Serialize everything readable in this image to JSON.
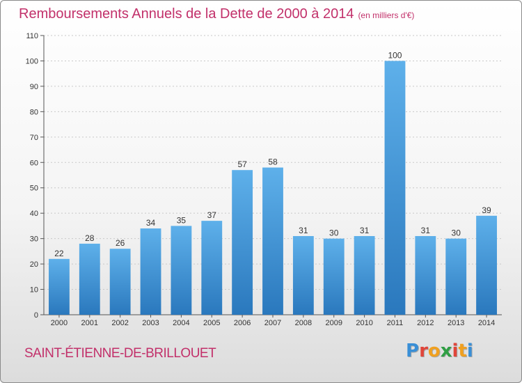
{
  "header": {
    "title": "Remboursements Annuels de la Dette de 2000 à 2014",
    "unit": "(en milliers d'€)"
  },
  "footer": {
    "commune": "SAINT-ÉTIENNE-DE-BRILLOUET",
    "logo_letters": [
      "P",
      "r",
      "o",
      "x",
      "i",
      "t",
      "i"
    ],
    "logo_colors": [
      "#3a8fd6",
      "#e0453a",
      "#f0a020",
      "#2f9e44",
      "#e0453a",
      "#f0a020",
      "#3a8fd6"
    ]
  },
  "colors": {
    "bar_top": "#5eb0ea",
    "bar_bottom": "#2a78bd",
    "grid": "#c8c8c8",
    "title": "#c2306a"
  },
  "chart_data": {
    "type": "bar",
    "title": "Remboursements Annuels de la Dette de 2000 à 2014",
    "xlabel": "",
    "ylabel": "",
    "categories": [
      "2000",
      "2001",
      "2002",
      "2003",
      "2004",
      "2005",
      "2006",
      "2007",
      "2008",
      "2009",
      "2010",
      "2011",
      "2012",
      "2013",
      "2014"
    ],
    "values": [
      22,
      28,
      26,
      34,
      35,
      37,
      57,
      58,
      31,
      30,
      31,
      100,
      31,
      30,
      39
    ],
    "ylim": [
      0,
      110
    ],
    "yticks": [
      0,
      10,
      20,
      30,
      40,
      50,
      60,
      70,
      80,
      90,
      100,
      110
    ],
    "grid": true,
    "data_labels": true
  }
}
